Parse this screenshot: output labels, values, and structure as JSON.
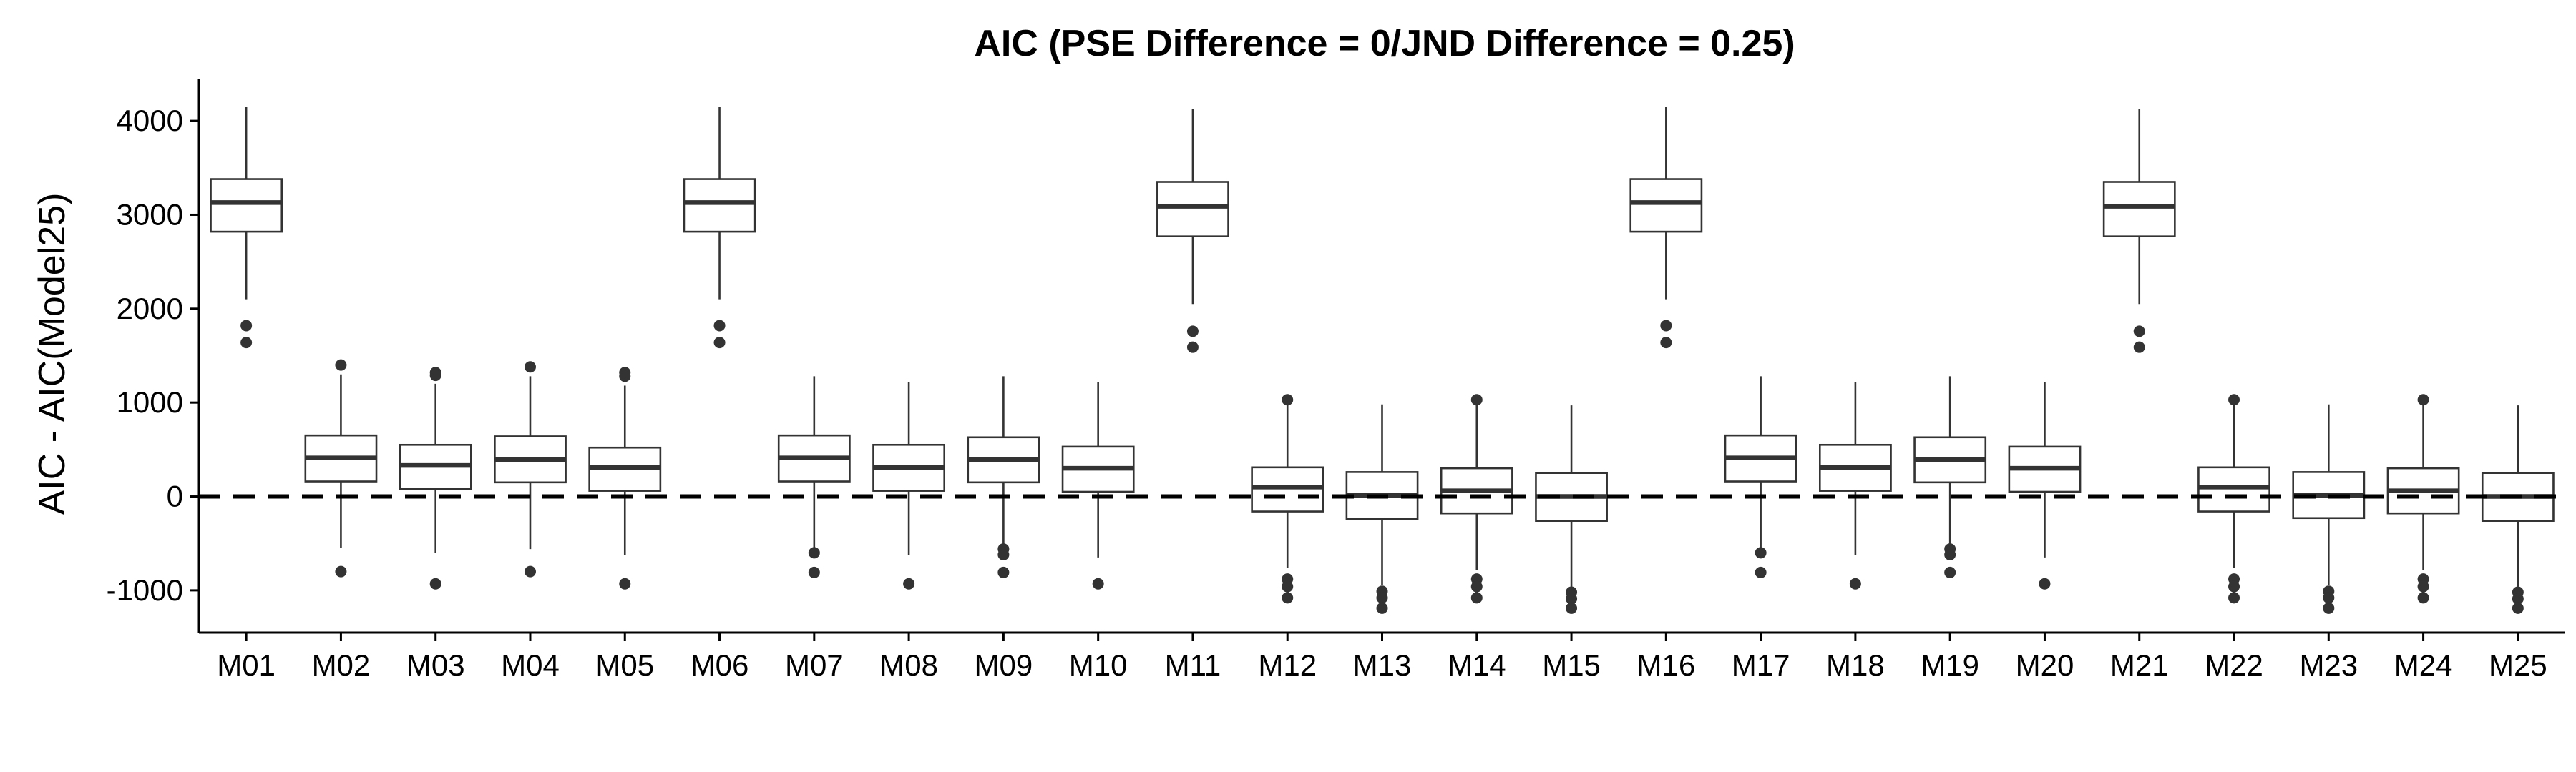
{
  "chart_data": {
    "type": "boxplot",
    "title": "AIC (PSE Difference = 0/JND Difference = 0.25)",
    "xlabel": "",
    "ylabel": "AIC - AIC(Model25)",
    "ylim": [
      -1450,
      4450
    ],
    "yticks": [
      -1000,
      0,
      1000,
      2000,
      3000,
      4000
    ],
    "reference_line": {
      "y": 0,
      "style": "dashed"
    },
    "grid": false,
    "legend": "none",
    "categories": [
      "M01",
      "M02",
      "M03",
      "M04",
      "M05",
      "M06",
      "M07",
      "M08",
      "M09",
      "M10",
      "M11",
      "M12",
      "M13",
      "M14",
      "M15",
      "M16",
      "M17",
      "M18",
      "M19",
      "M20",
      "M21",
      "M22",
      "M23",
      "M24",
      "M25"
    ],
    "boxes": [
      {
        "category": "M01",
        "min": 2100,
        "q1": 2820,
        "median": 3130,
        "q3": 3380,
        "max": 4150,
        "outliers": [
          1820,
          1640
        ]
      },
      {
        "category": "M02",
        "min": -550,
        "q1": 160,
        "median": 410,
        "q3": 650,
        "max": 1300,
        "outliers": [
          1400,
          -800
        ]
      },
      {
        "category": "M03",
        "min": -600,
        "q1": 80,
        "median": 330,
        "q3": 550,
        "max": 1200,
        "outliers": [
          1320,
          1290,
          -930
        ]
      },
      {
        "category": "M04",
        "min": -560,
        "q1": 150,
        "median": 390,
        "q3": 640,
        "max": 1280,
        "outliers": [
          1380,
          -800
        ]
      },
      {
        "category": "M05",
        "min": -620,
        "q1": 60,
        "median": 310,
        "q3": 520,
        "max": 1180,
        "outliers": [
          1320,
          1280,
          -930
        ]
      },
      {
        "category": "M06",
        "min": 2100,
        "q1": 2820,
        "median": 3130,
        "q3": 3380,
        "max": 4150,
        "outliers": [
          1820,
          1640
        ]
      },
      {
        "category": "M07",
        "min": -560,
        "q1": 160,
        "median": 410,
        "q3": 650,
        "max": 1280,
        "outliers": [
          -600,
          -810
        ]
      },
      {
        "category": "M08",
        "min": -620,
        "q1": 60,
        "median": 310,
        "q3": 550,
        "max": 1220,
        "outliers": [
          -930
        ]
      },
      {
        "category": "M09",
        "min": -540,
        "q1": 150,
        "median": 390,
        "q3": 630,
        "max": 1280,
        "outliers": [
          -560,
          -620,
          -810
        ]
      },
      {
        "category": "M10",
        "min": -650,
        "q1": 50,
        "median": 300,
        "q3": 530,
        "max": 1220,
        "outliers": [
          -930
        ]
      },
      {
        "category": "M11",
        "min": 2050,
        "q1": 2770,
        "median": 3090,
        "q3": 3350,
        "max": 4130,
        "outliers": [
          1760,
          1590
        ]
      },
      {
        "category": "M12",
        "min": -760,
        "q1": -160,
        "median": 100,
        "q3": 310,
        "max": 980,
        "outliers": [
          1030,
          -880,
          -960,
          -1080
        ]
      },
      {
        "category": "M13",
        "min": -940,
        "q1": -240,
        "median": 10,
        "q3": 260,
        "max": 980,
        "outliers": [
          -1010,
          -1080,
          -1190
        ]
      },
      {
        "category": "M14",
        "min": -780,
        "q1": -180,
        "median": 60,
        "q3": 300,
        "max": 980,
        "outliers": [
          1030,
          -880,
          -960,
          -1080
        ]
      },
      {
        "category": "M15",
        "min": -960,
        "q1": -260,
        "median": 0,
        "q3": 250,
        "max": 970,
        "outliers": [
          -1020,
          -1090,
          -1190
        ]
      },
      {
        "category": "M16",
        "min": 2100,
        "q1": 2820,
        "median": 3130,
        "q3": 3380,
        "max": 4150,
        "outliers": [
          1820,
          1640
        ]
      },
      {
        "category": "M17",
        "min": -560,
        "q1": 160,
        "median": 410,
        "q3": 650,
        "max": 1280,
        "outliers": [
          -600,
          -810
        ]
      },
      {
        "category": "M18",
        "min": -620,
        "q1": 60,
        "median": 310,
        "q3": 550,
        "max": 1220,
        "outliers": [
          -930
        ]
      },
      {
        "category": "M19",
        "min": -540,
        "q1": 150,
        "median": 390,
        "q3": 630,
        "max": 1280,
        "outliers": [
          -560,
          -620,
          -810
        ]
      },
      {
        "category": "M20",
        "min": -650,
        "q1": 50,
        "median": 300,
        "q3": 530,
        "max": 1220,
        "outliers": [
          -930
        ]
      },
      {
        "category": "M21",
        "min": 2050,
        "q1": 2770,
        "median": 3090,
        "q3": 3350,
        "max": 4130,
        "outliers": [
          1760,
          1590
        ]
      },
      {
        "category": "M22",
        "min": -760,
        "q1": -160,
        "median": 100,
        "q3": 310,
        "max": 980,
        "outliers": [
          1030,
          -880,
          -960,
          -1080
        ]
      },
      {
        "category": "M23",
        "min": -940,
        "q1": -230,
        "median": 10,
        "q3": 260,
        "max": 980,
        "outliers": [
          -1010,
          -1080,
          -1190
        ]
      },
      {
        "category": "M24",
        "min": -780,
        "q1": -180,
        "median": 60,
        "q3": 300,
        "max": 980,
        "outliers": [
          1030,
          -880,
          -960,
          -1080
        ]
      },
      {
        "category": "M25",
        "min": -960,
        "q1": -260,
        "median": 0,
        "q3": 250,
        "max": 970,
        "outliers": [
          -1020,
          -1090,
          -1190
        ]
      }
    ]
  }
}
